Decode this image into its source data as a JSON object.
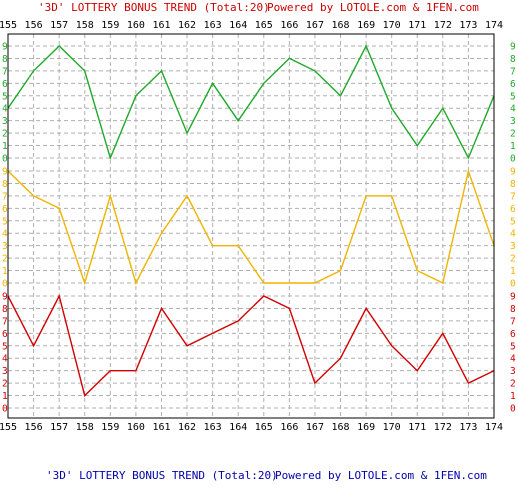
{
  "header": {
    "title_left": "'3D' LOTTERY BONUS TREND (Total:20)",
    "title_right": "Powered by LOTOLE.com & 1FEN.com"
  },
  "footer": {
    "title_left": "'3D' LOTTERY BONUS TREND (Total:20)",
    "title_right": "Powered by LOTOLE.com & 1FEN.com"
  },
  "colors": {
    "header_left": "#cc0000",
    "header_right": "#cc0000",
    "footer_left": "#0000aa",
    "footer_right": "#0000aa",
    "grid": "#b0b0b0",
    "tick_text": "#000000"
  },
  "chart_data": {
    "type": "line",
    "categories": [
      "155",
      "156",
      "157",
      "158",
      "159",
      "160",
      "161",
      "162",
      "163",
      "164",
      "165",
      "166",
      "167",
      "168",
      "169",
      "170",
      "171",
      "172",
      "173",
      "174"
    ],
    "ylim": [
      0,
      9
    ],
    "grid": true,
    "series": [
      {
        "values": [
          4,
          7,
          9,
          7,
          0,
          5,
          7,
          2,
          6,
          3,
          6,
          8,
          7,
          5,
          9,
          4,
          1,
          4,
          0,
          5
        ],
        "color": "#1faa2a"
      },
      {
        "values": [
          9,
          7,
          6,
          0,
          7,
          0,
          4,
          7,
          3,
          3,
          0,
          0,
          0,
          1,
          7,
          7,
          1,
          0,
          9,
          3
        ],
        "color": "#f0b400"
      },
      {
        "values": [
          9,
          5,
          9,
          1,
          3,
          3,
          8,
          5,
          6,
          7,
          9,
          8,
          2,
          4,
          8,
          5,
          3,
          6,
          2,
          3
        ],
        "color": "#d40000"
      }
    ],
    "panel_label_colors": [
      "#1faa2a",
      "#f0b400",
      "#d40000"
    ],
    "y_ticks": [
      "0",
      "1",
      "2",
      "3",
      "4",
      "5",
      "6",
      "7",
      "8",
      "9"
    ]
  }
}
